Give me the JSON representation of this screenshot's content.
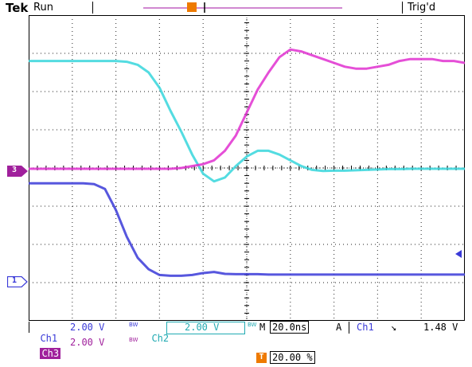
{
  "status": {
    "brand": "Tek",
    "run_state": "Run",
    "trigger_state": "Trig'd"
  },
  "trigger_marker": {
    "label": "T"
  },
  "markers": {
    "ch3": {
      "label": "3",
      "color": "#a0209c"
    },
    "ch1": {
      "label": "1",
      "color": "#3a3ad8"
    }
  },
  "readouts": {
    "ch1": {
      "name": "Ch1",
      "scale": "2.00 V",
      "bw": "BW"
    },
    "ch2": {
      "name": "Ch2",
      "scale": "2.00 V",
      "bw": "BW"
    },
    "ch3": {
      "name": "Ch3",
      "scale": "2.00 V",
      "bw": "BW"
    },
    "timebase": {
      "label": "M",
      "value": "20.0ns"
    },
    "trigger": {
      "mode": "A",
      "source": "Ch1",
      "slope": "↘",
      "level": "1.48 V"
    },
    "trigger_position": {
      "icon": "T",
      "value": "20.00 %"
    }
  },
  "colors": {
    "ch1": "#3a3ad8",
    "ch2": "#36d6dc",
    "ch3": "#e030d0",
    "trigger": "#ee7a00",
    "grid": "#000000"
  },
  "chart_data": {
    "type": "line",
    "title": "",
    "xlabel": "",
    "ylabel": "",
    "x_divisions": 10,
    "y_divisions": 8,
    "grid": true,
    "x": [
      0,
      0.25,
      0.5,
      0.75,
      1,
      1.25,
      1.5,
      1.75,
      2,
      2.25,
      2.5,
      2.75,
      3,
      3.25,
      3.5,
      3.75,
      4,
      4.25,
      4.5,
      4.75,
      5,
      5.25,
      5.5,
      5.75,
      6,
      6.25,
      6.5,
      6.75,
      7,
      7.25,
      7.5,
      7.75,
      8,
      8.25,
      8.5,
      8.75,
      9,
      9.25,
      9.5,
      9.75,
      10
    ],
    "series": [
      {
        "name": "Ch2",
        "color": "#36d6dc",
        "y": [
          6.8,
          6.8,
          6.8,
          6.8,
          6.8,
          6.8,
          6.8,
          6.8,
          6.8,
          6.78,
          6.7,
          6.5,
          6.1,
          5.5,
          4.95,
          4.35,
          3.85,
          3.65,
          3.75,
          4.05,
          4.3,
          4.45,
          4.45,
          4.35,
          4.2,
          4.05,
          3.95,
          3.92,
          3.93,
          3.93,
          3.94,
          3.95,
          3.96,
          3.97,
          3.97,
          3.98,
          3.98,
          3.98,
          3.98,
          3.98,
          3.98
        ]
      },
      {
        "name": "Ch3",
        "color": "#e030d0",
        "y": [
          3.98,
          3.98,
          3.98,
          3.98,
          3.98,
          3.98,
          3.98,
          3.98,
          3.98,
          3.98,
          3.98,
          3.98,
          3.98,
          3.98,
          4.0,
          4.05,
          4.1,
          4.2,
          4.45,
          4.85,
          5.45,
          6.05,
          6.5,
          6.9,
          7.1,
          7.05,
          6.95,
          6.85,
          6.75,
          6.65,
          6.6,
          6.6,
          6.65,
          6.7,
          6.8,
          6.85,
          6.85,
          6.85,
          6.8,
          6.8,
          6.75
        ]
      },
      {
        "name": "Ch1",
        "color": "#3a3ad8",
        "y": [
          3.6,
          3.6,
          3.6,
          3.6,
          3.6,
          3.6,
          3.58,
          3.45,
          2.9,
          2.2,
          1.65,
          1.35,
          1.2,
          1.18,
          1.18,
          1.2,
          1.25,
          1.28,
          1.23,
          1.22,
          1.22,
          1.22,
          1.21,
          1.21,
          1.21,
          1.21,
          1.21,
          1.21,
          1.21,
          1.21,
          1.21,
          1.21,
          1.21,
          1.21,
          1.21,
          1.21,
          1.21,
          1.21,
          1.21,
          1.21,
          1.21
        ]
      }
    ]
  }
}
